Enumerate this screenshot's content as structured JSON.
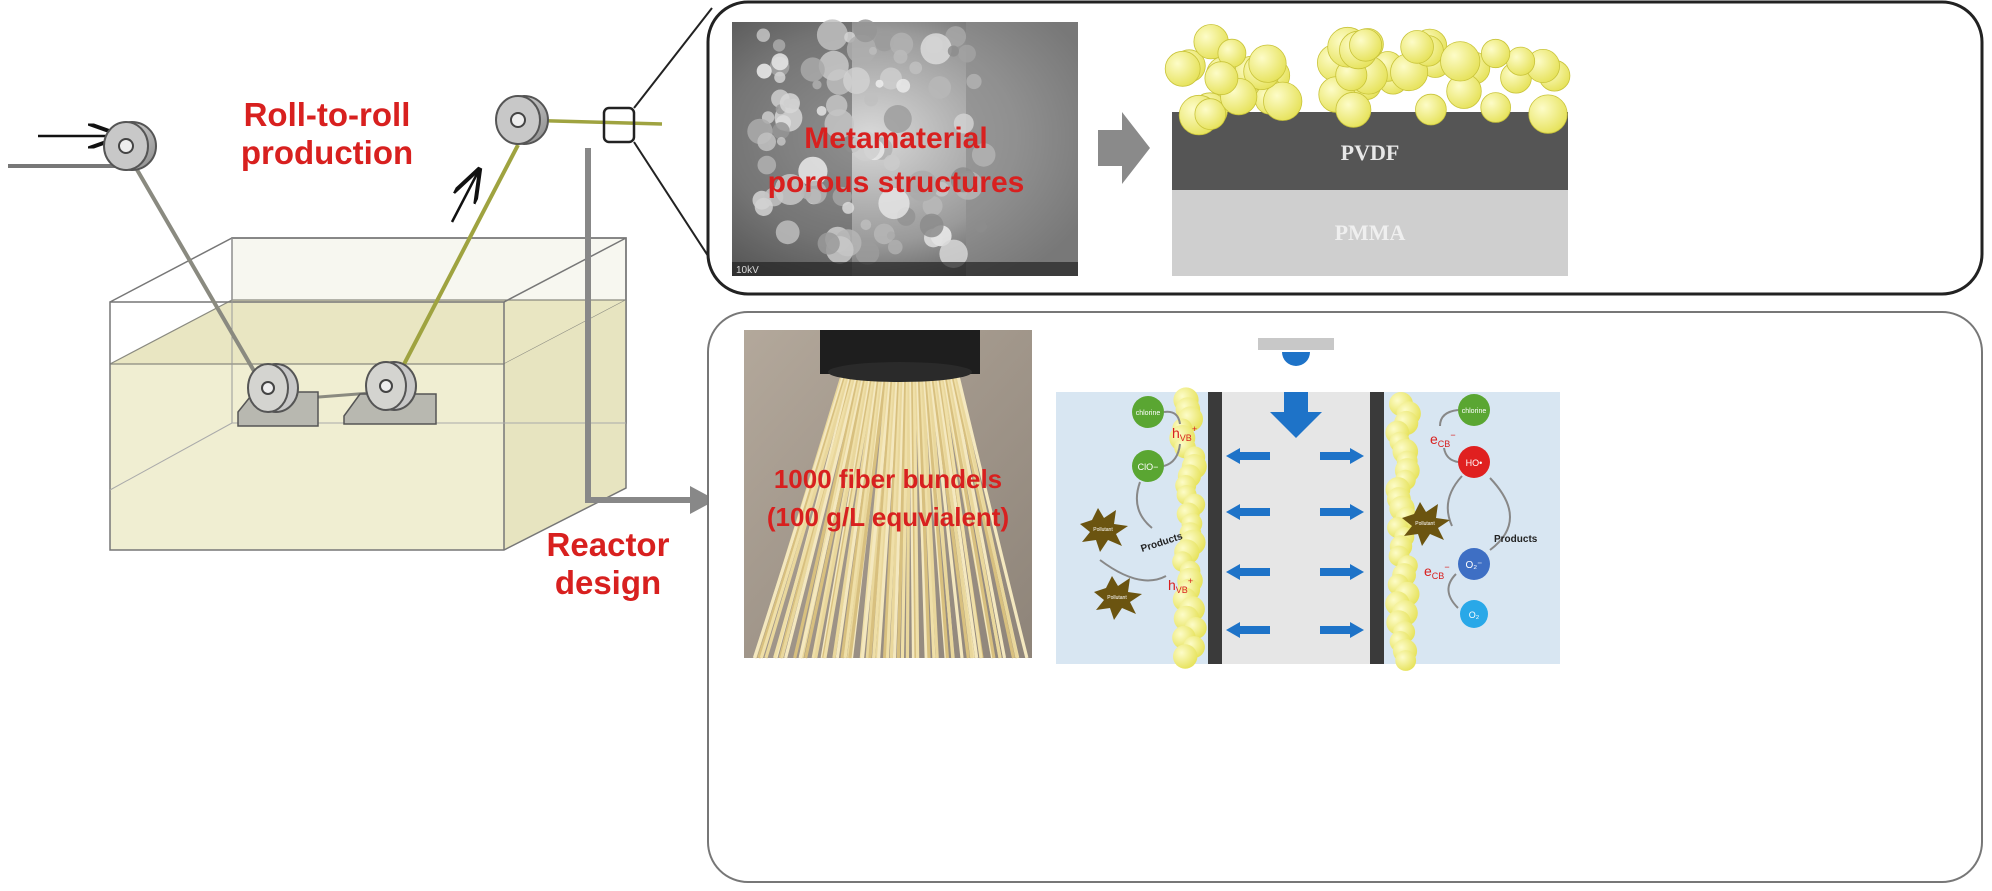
{
  "labels": {
    "production_line1": "Roll-to-roll",
    "production_line2": "production",
    "reactor_line1": "Reactor",
    "reactor_line2": "design",
    "porous_line1": "Metamaterial",
    "porous_line2": "porous structures",
    "bundle_line1": "1000 fiber bundels",
    "bundle_line2": "(100 g/L equvialent)"
  },
  "layers": {
    "pvdf": "PVDF",
    "pmma": "PMMA"
  },
  "sem_scale_text": "10kV",
  "mechanism": {
    "left": {
      "chlorine": "chlorine",
      "clo": "ClO−",
      "hvb": "h",
      "hvb_sub": "VB",
      "hvb_sup": "+",
      "pollutant_top": "Pollutant",
      "pollutant_bottom": "Pollutant",
      "products": "Products"
    },
    "right": {
      "chlorine": "chlorine",
      "ho": "HO•",
      "ecb": "e",
      "ecb_sub": "CB",
      "ecb_sup": "−",
      "pollutant": "Pollutant",
      "products": "Products",
      "o2_radical": "O₂⁻",
      "o2": "O₂"
    }
  },
  "colors": {
    "label_red": "#d8201f",
    "pvdf": "#555555",
    "pmma": "#cfcfcf",
    "particle": "#f2f07a",
    "flow_arrow": "#1e73c8",
    "chlorine": "#5aa632",
    "ho": "#e02020",
    "o2_radical": "#3e6fc4",
    "o2": "#29a8e8",
    "pollutant": "#6b5410"
  }
}
